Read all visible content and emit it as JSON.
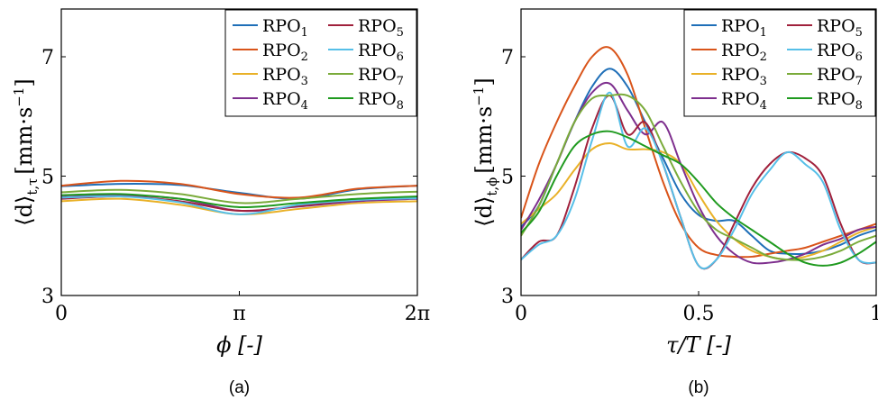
{
  "series_colors": [
    "#1f6fb8",
    "#d9541a",
    "#e9b128",
    "#7e2f8e",
    "#a0213c",
    "#56bfe8",
    "#7aab3a",
    "#1f9a1f"
  ],
  "chart_data": [
    {
      "type": "line",
      "caption": "(a)",
      "xlabel": "ϕ [-]",
      "ylabel_main": "⟨d⟩",
      "ylabel_sub": "t,τ",
      "ylabel_unit": "[mm·s",
      "ylabel_exp": "−1",
      "ylabel_close": "]",
      "xlim": [
        0,
        6.2832
      ],
      "ylim": [
        3,
        7.8
      ],
      "xtick_values": [
        0,
        3.1416,
        6.2832
      ],
      "xtick_labels": [
        "0",
        "π",
        "2π"
      ],
      "ytick_values": [
        3,
        5,
        7
      ],
      "ytick_labels": [
        "3",
        "5",
        "7"
      ],
      "legend": {
        "position": "top-right",
        "prefix": "RPO",
        "subs": [
          "1",
          "2",
          "3",
          "4",
          "5",
          "6",
          "7",
          "8"
        ]
      },
      "series": [
        {
          "name": "RPO1",
          "x": [
            0,
            1.047,
            2.094,
            3.142,
            4.189,
            5.236,
            6.283
          ],
          "values": [
            4.83,
            4.87,
            4.85,
            4.72,
            4.62,
            4.78,
            4.84
          ]
        },
        {
          "name": "RPO2",
          "x": [
            0,
            1.047,
            2.094,
            3.142,
            4.189,
            5.236,
            6.283
          ],
          "values": [
            4.84,
            4.92,
            4.87,
            4.7,
            4.64,
            4.79,
            4.84
          ]
        },
        {
          "name": "RPO3",
          "x": [
            0,
            1.047,
            2.094,
            3.142,
            4.189,
            5.236,
            6.283
          ],
          "values": [
            4.58,
            4.62,
            4.52,
            4.36,
            4.45,
            4.55,
            4.58
          ]
        },
        {
          "name": "RPO4",
          "x": [
            0,
            1.047,
            2.094,
            3.142,
            4.189,
            5.236,
            6.283
          ],
          "values": [
            4.65,
            4.68,
            4.62,
            4.42,
            4.49,
            4.58,
            4.62
          ]
        },
        {
          "name": "RPO5",
          "x": [
            0,
            1.047,
            2.094,
            3.142,
            4.189,
            5.236,
            6.283
          ],
          "values": [
            4.62,
            4.66,
            4.58,
            4.42,
            4.5,
            4.6,
            4.63
          ]
        },
        {
          "name": "RPO6",
          "x": [
            0,
            1.047,
            2.094,
            3.142,
            4.189,
            5.236,
            6.283
          ],
          "values": [
            4.64,
            4.66,
            4.56,
            4.36,
            4.52,
            4.6,
            4.63
          ]
        },
        {
          "name": "RPO7",
          "x": [
            0,
            1.047,
            2.094,
            3.142,
            4.189,
            5.236,
            6.283
          ],
          "values": [
            4.73,
            4.77,
            4.7,
            4.55,
            4.62,
            4.7,
            4.74
          ]
        },
        {
          "name": "RPO8",
          "x": [
            0,
            1.047,
            2.094,
            3.142,
            4.189,
            5.236,
            6.283
          ],
          "values": [
            4.68,
            4.7,
            4.62,
            4.48,
            4.55,
            4.62,
            4.66
          ]
        }
      ]
    },
    {
      "type": "line",
      "caption": "(b)",
      "xlabel": "τ/T [-]",
      "ylabel_main": "⟨d⟩",
      "ylabel_sub": "t,ϕ",
      "ylabel_unit": "[mm·s",
      "ylabel_exp": "−1",
      "ylabel_close": "]",
      "xlim": [
        0,
        1
      ],
      "ylim": [
        3,
        7.8
      ],
      "xtick_values": [
        0,
        0.5,
        1
      ],
      "xtick_labels": [
        "0",
        "0.5",
        "1"
      ],
      "ytick_values": [
        3,
        5,
        7
      ],
      "ytick_labels": [
        "3",
        "5",
        "7"
      ],
      "legend": {
        "position": "top-right",
        "prefix": "RPO",
        "subs": [
          "1",
          "2",
          "3",
          "4",
          "5",
          "6",
          "7",
          "8"
        ]
      },
      "series": [
        {
          "name": "RPO1",
          "x": [
            0,
            0.05,
            0.1,
            0.15,
            0.2,
            0.25,
            0.3,
            0.35,
            0.4,
            0.45,
            0.5,
            0.55,
            0.6,
            0.65,
            0.7,
            0.75,
            0.8,
            0.85,
            0.9,
            0.95,
            1.0
          ],
          "values": [
            4.15,
            4.5,
            5.2,
            5.9,
            6.5,
            6.8,
            6.5,
            5.9,
            5.3,
            4.7,
            4.35,
            4.25,
            4.25,
            4.0,
            3.75,
            3.7,
            3.7,
            3.75,
            3.85,
            4.0,
            4.1
          ]
        },
        {
          "name": "RPO2",
          "x": [
            0,
            0.05,
            0.1,
            0.15,
            0.2,
            0.25,
            0.3,
            0.35,
            0.4,
            0.45,
            0.5,
            0.55,
            0.6,
            0.65,
            0.7,
            0.75,
            0.8,
            0.85,
            0.9,
            0.95,
            1.0
          ],
          "values": [
            4.3,
            5.2,
            5.9,
            6.5,
            7.0,
            7.15,
            6.7,
            5.8,
            4.9,
            4.2,
            3.8,
            3.68,
            3.65,
            3.65,
            3.7,
            3.75,
            3.8,
            3.9,
            4.0,
            4.1,
            4.2
          ]
        },
        {
          "name": "RPO3",
          "x": [
            0,
            0.05,
            0.1,
            0.15,
            0.2,
            0.25,
            0.3,
            0.35,
            0.4,
            0.45,
            0.5,
            0.55,
            0.6,
            0.65,
            0.7,
            0.75,
            0.8,
            0.85,
            0.9,
            0.95,
            1.0
          ],
          "values": [
            4.2,
            4.45,
            4.7,
            5.1,
            5.45,
            5.55,
            5.45,
            5.45,
            5.4,
            5.2,
            4.7,
            4.25,
            3.95,
            3.75,
            3.65,
            3.6,
            3.65,
            3.75,
            3.9,
            4.05,
            4.15
          ]
        },
        {
          "name": "RPO4",
          "x": [
            0,
            0.05,
            0.1,
            0.15,
            0.2,
            0.25,
            0.3,
            0.35,
            0.4,
            0.45,
            0.5,
            0.55,
            0.6,
            0.65,
            0.7,
            0.75,
            0.8,
            0.85,
            0.9,
            0.95,
            1.0
          ],
          "values": [
            4.1,
            4.6,
            5.2,
            5.9,
            6.4,
            6.55,
            6.1,
            5.7,
            5.9,
            5.2,
            4.5,
            4.0,
            3.7,
            3.55,
            3.55,
            3.6,
            3.7,
            3.85,
            3.95,
            4.1,
            4.15
          ]
        },
        {
          "name": "RPO5",
          "x": [
            0,
            0.05,
            0.1,
            0.15,
            0.2,
            0.25,
            0.3,
            0.35,
            0.4,
            0.45,
            0.5,
            0.55,
            0.6,
            0.65,
            0.7,
            0.75,
            0.8,
            0.85,
            0.9,
            0.95,
            1.0
          ],
          "values": [
            3.6,
            3.9,
            4.0,
            4.8,
            5.8,
            6.35,
            5.7,
            5.9,
            5.2,
            4.3,
            3.5,
            3.6,
            4.2,
            4.8,
            5.2,
            5.4,
            5.3,
            5.0,
            4.2,
            3.6,
            3.55
          ]
        },
        {
          "name": "RPO6",
          "x": [
            0,
            0.05,
            0.1,
            0.15,
            0.2,
            0.25,
            0.3,
            0.35,
            0.4,
            0.45,
            0.5,
            0.55,
            0.6,
            0.65,
            0.7,
            0.75,
            0.8,
            0.85,
            0.9,
            0.95,
            1.0
          ],
          "values": [
            3.6,
            3.85,
            4.0,
            4.6,
            5.6,
            6.4,
            5.5,
            5.8,
            5.2,
            4.3,
            3.5,
            3.6,
            4.1,
            4.7,
            5.1,
            5.4,
            5.2,
            4.9,
            4.1,
            3.6,
            3.55
          ]
        },
        {
          "name": "RPO7",
          "x": [
            0,
            0.05,
            0.1,
            0.15,
            0.2,
            0.25,
            0.3,
            0.35,
            0.4,
            0.45,
            0.5,
            0.55,
            0.6,
            0.65,
            0.7,
            0.75,
            0.8,
            0.85,
            0.9,
            0.95,
            1.0
          ],
          "values": [
            4.0,
            4.5,
            5.2,
            5.9,
            6.3,
            6.35,
            6.35,
            6.1,
            5.5,
            4.9,
            4.4,
            4.1,
            3.95,
            3.8,
            3.65,
            3.6,
            3.6,
            3.65,
            3.75,
            3.9,
            4.0
          ]
        },
        {
          "name": "RPO8",
          "x": [
            0,
            0.05,
            0.1,
            0.15,
            0.2,
            0.25,
            0.3,
            0.35,
            0.4,
            0.45,
            0.5,
            0.55,
            0.6,
            0.65,
            0.7,
            0.75,
            0.8,
            0.85,
            0.9,
            0.95,
            1.0
          ],
          "values": [
            4.05,
            4.4,
            5.0,
            5.5,
            5.7,
            5.75,
            5.65,
            5.5,
            5.35,
            5.2,
            4.9,
            4.55,
            4.3,
            4.1,
            3.9,
            3.7,
            3.55,
            3.5,
            3.55,
            3.7,
            3.9
          ]
        }
      ]
    }
  ]
}
